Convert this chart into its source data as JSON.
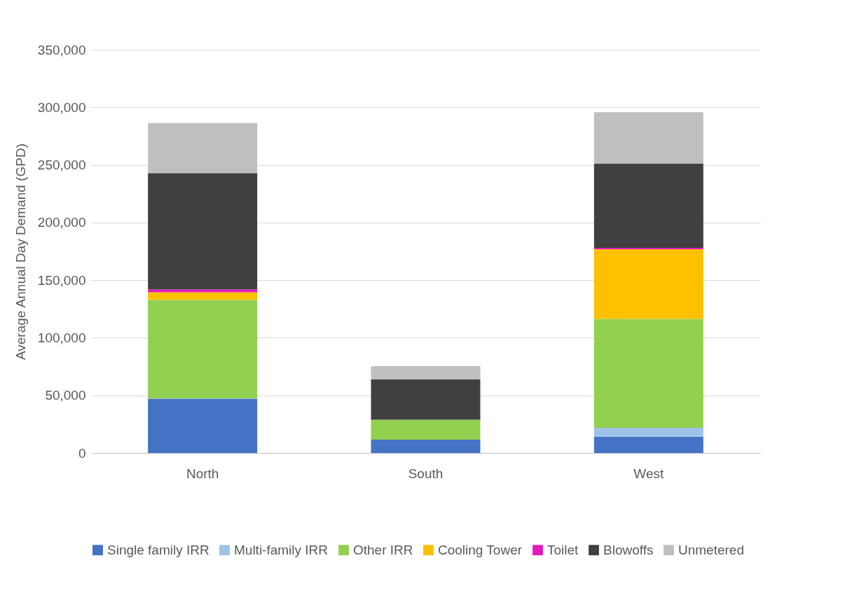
{
  "chart_data": {
    "type": "bar",
    "stacked": true,
    "ylabel": "Average Annual Day Demand (GPD)",
    "categories": [
      "North",
      "South",
      "West"
    ],
    "ylim": [
      0,
      350000
    ],
    "yticks": [
      0,
      {
        "value": 50000,
        "label": "50,000"
      },
      {
        "value": 100000,
        "label": "100,000"
      },
      {
        "value": 150000,
        "label": "150,000"
      },
      {
        "value": 200000,
        "label": "200,000"
      },
      {
        "value": 250000,
        "label": "250,000"
      },
      {
        "value": 300000,
        "label": "300,000"
      },
      {
        "value": 350000,
        "label": "350,000"
      }
    ],
    "grid": "y",
    "legend": "bottom",
    "series": [
      {
        "name": "Single family IRR",
        "color": "#4472c4",
        "values": [
          46800,
          11500,
          14100
        ]
      },
      {
        "name": "Multi-family IRR",
        "color": "#9dc3e6",
        "values": [
          600,
          0,
          7700
        ]
      },
      {
        "name": "Other IRR",
        "color": "#92d050",
        "values": [
          85500,
          17400,
          94500
        ]
      },
      {
        "name": "Cooling Tower",
        "color": "#ffc000",
        "values": [
          6600,
          0,
          60500
        ]
      },
      {
        "name": "Toilet",
        "color": "#e31bc0",
        "values": [
          2400,
          0,
          1200
        ]
      },
      {
        "name": "Blowoffs",
        "color": "#404040",
        "values": [
          101000,
          34900,
          73200
        ]
      },
      {
        "name": "Unmetered",
        "color": "#bfbfbf",
        "values": [
          43400,
          11500,
          44500
        ]
      }
    ]
  }
}
